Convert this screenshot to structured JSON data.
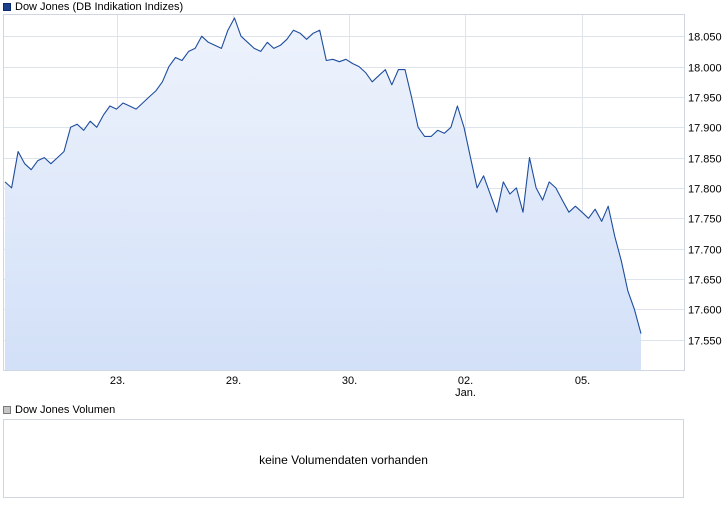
{
  "price_legend": {
    "label": "Dow Jones (DB Indikation Indizes)",
    "color": "#1e3f8c"
  },
  "volume_legend": {
    "label": "Dow Jones Volumen",
    "color": "#c6c6c6"
  },
  "volume_panel": {
    "message": "keine Volumendaten vorhanden"
  },
  "chart_data": {
    "type": "area",
    "title": "Dow Jones (DB Indikation Indizes)",
    "xlabel": "",
    "ylabel": "",
    "x_tick_labels": [
      "23.",
      "29.",
      "30.",
      "02.",
      "05."
    ],
    "x_sublabel": "Jan.",
    "y_tick_labels": [
      "17.550",
      "17.600",
      "17.650",
      "17.700",
      "17.750",
      "17.800",
      "17.850",
      "17.900",
      "17.950",
      "18.000",
      "18.050"
    ],
    "y_ticks": [
      17550,
      17600,
      17650,
      17700,
      17750,
      17800,
      17850,
      17900,
      17950,
      18000,
      18050
    ],
    "ylim": [
      17500,
      18085
    ],
    "grid": true,
    "line_color": "#1e4d9e",
    "fill_top_color": "#eef3fc",
    "fill_bottom_color": "#d2e0f8",
    "series": [
      {
        "values": [
          17810,
          17800,
          17860,
          17840,
          17830,
          17845,
          17850,
          17840,
          17850,
          17860,
          17900,
          17905,
          17895,
          17910,
          17900,
          17920,
          17935,
          17930,
          17940,
          17935,
          17930,
          17940,
          17950,
          17960,
          17975,
          18000,
          18015,
          18010,
          18025,
          18030,
          18050,
          18040,
          18035,
          18030,
          18060,
          18080,
          18050,
          18040,
          18030,
          18025,
          18040,
          18030,
          18035,
          18045,
          18060,
          18055,
          18045,
          18055,
          18060,
          18010,
          18012,
          18008,
          18012,
          18005,
          18000,
          17990,
          17975,
          17985,
          17995,
          17970,
          17995,
          17995,
          17950,
          17900,
          17885,
          17885,
          17895,
          17890,
          17900,
          17935,
          17900,
          17850,
          17800,
          17820,
          17790,
          17760,
          17810,
          17790,
          17800,
          17760,
          17850,
          17800,
          17780,
          17810,
          17800,
          17780,
          17760,
          17770,
          17760,
          17750,
          17765,
          17745,
          17770,
          17720,
          17680,
          17630,
          17600,
          17560
        ]
      }
    ]
  }
}
